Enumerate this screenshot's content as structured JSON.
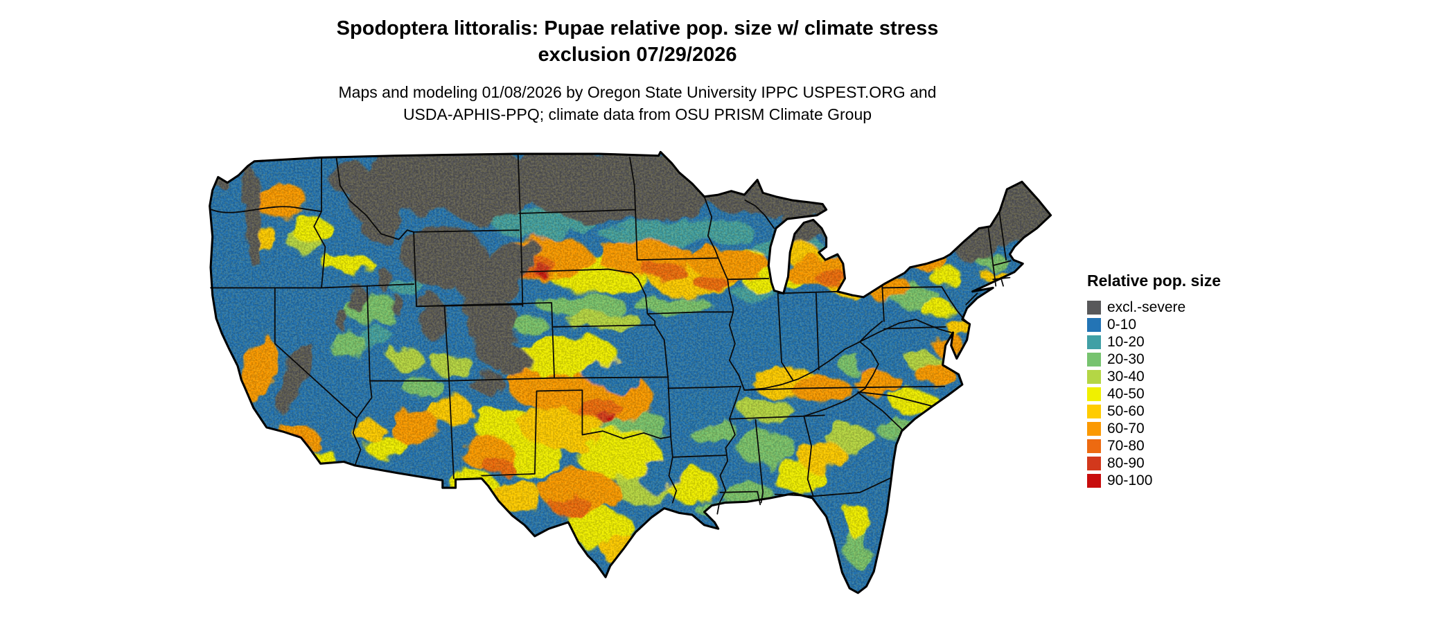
{
  "header": {
    "title": {
      "line1": "Spodoptera littoralis: Pupae relative pop. size w/ climate stress",
      "line2": "exclusion 07/29/2026"
    },
    "subtitle": {
      "line1": "Maps and modeling 01/08/2026 by Oregon State University IPPC USPEST.ORG and",
      "line2": "USDA-APHIS-PPQ; climate data from OSU PRISM Climate Group"
    }
  },
  "map": {
    "type": "raster-choropleth",
    "region": "contiguous United States"
  },
  "legend": {
    "title": "Relative pop. size",
    "items": [
      {
        "label": "excl.-severe",
        "color": "#58585a"
      },
      {
        "label": "0-10",
        "color": "#2374b5"
      },
      {
        "label": "10-20",
        "color": "#41a0a5"
      },
      {
        "label": "20-30",
        "color": "#77c36f"
      },
      {
        "label": "30-40",
        "color": "#b4d645"
      },
      {
        "label": "40-50",
        "color": "#f0f000"
      },
      {
        "label": "50-60",
        "color": "#ffcc00"
      },
      {
        "label": "60-70",
        "color": "#fb9902"
      },
      {
        "label": "70-80",
        "color": "#ed6a11"
      },
      {
        "label": "80-90",
        "color": "#d2381c"
      },
      {
        "label": "90-100",
        "color": "#c80d0d"
      }
    ]
  }
}
